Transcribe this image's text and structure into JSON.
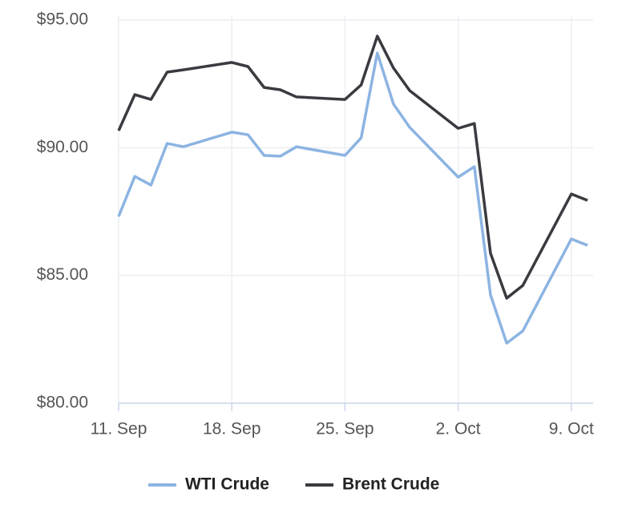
{
  "chart_data": {
    "type": "line",
    "x": [
      "09-11",
      "09-12",
      "09-13",
      "09-14",
      "09-15",
      "09-18",
      "09-19",
      "09-20",
      "09-21",
      "09-22",
      "09-25",
      "09-26",
      "09-27",
      "09-28",
      "09-29",
      "10-02",
      "10-03",
      "10-04",
      "10-05",
      "10-06",
      "10-09",
      "10-10"
    ],
    "series": [
      {
        "name": "WTI Crude",
        "color": "#8cb4e2",
        "values": [
          87.31,
          88.88,
          88.54,
          90.17,
          90.04,
          90.61,
          90.51,
          89.7,
          89.67,
          90.04,
          89.7,
          90.39,
          93.71,
          91.71,
          90.8,
          88.85,
          89.26,
          84.24,
          82.35,
          82.83,
          86.43,
          86.18
        ]
      },
      {
        "name": "Brent Crude",
        "color": "#3a3b40",
        "values": [
          90.67,
          92.08,
          91.89,
          92.96,
          93.05,
          93.34,
          93.18,
          92.36,
          92.27,
          91.99,
          91.89,
          92.46,
          94.37,
          93.12,
          92.24,
          90.76,
          90.95,
          85.87,
          84.11,
          84.61,
          88.19,
          87.94
        ]
      }
    ],
    "xlim": [
      "09-11",
      "10-10"
    ],
    "xticks": [
      {
        "value": "09-11",
        "label": "11. Sep"
      },
      {
        "value": "09-18",
        "label": "18. Sep"
      },
      {
        "value": "09-25",
        "label": "25. Sep"
      },
      {
        "value": "10-02",
        "label": "2. Oct"
      },
      {
        "value": "10-09",
        "label": "9. Oct"
      }
    ],
    "ylim": [
      80,
      95
    ],
    "yticks": [
      {
        "value": 80,
        "label": "$80.00"
      },
      {
        "value": 85,
        "label": "$85.00"
      },
      {
        "value": 90,
        "label": "$90.00"
      },
      {
        "value": 95,
        "label": "$95.00"
      }
    ],
    "grid": true,
    "legend": "bottom"
  }
}
